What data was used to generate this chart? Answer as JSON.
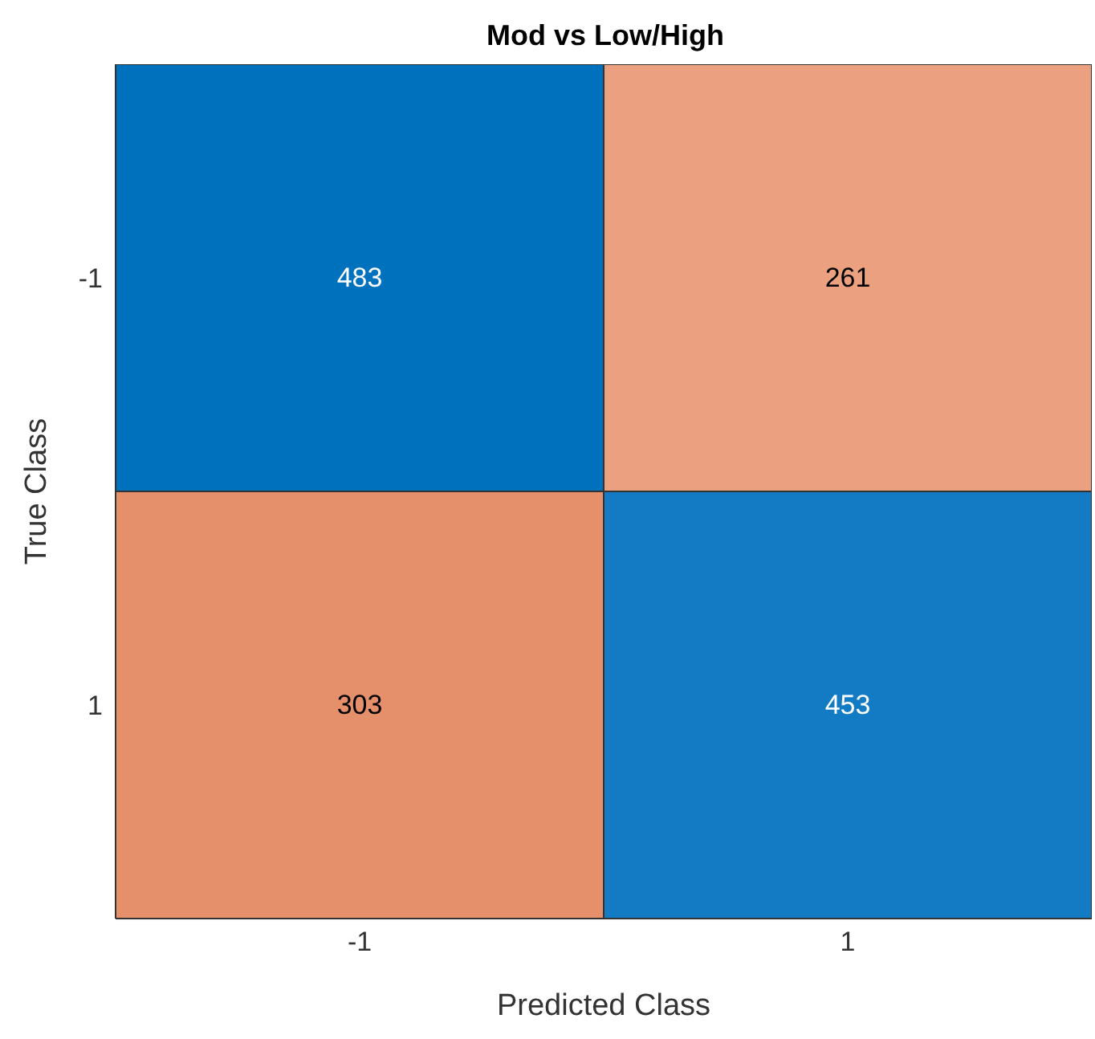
{
  "chart_data": {
    "type": "heatmap",
    "title": "Mod vs Low/High",
    "xlabel": "Predicted Class",
    "ylabel": "True Class",
    "categories": [
      "-1",
      "1"
    ],
    "y_categories": [
      "-1",
      "1"
    ],
    "cells": [
      [
        483,
        261
      ],
      [
        303,
        453
      ]
    ],
    "colors": [
      "#0072bd",
      "#eba080",
      "#e5906a",
      "#137bc4"
    ],
    "data_labels": true
  }
}
